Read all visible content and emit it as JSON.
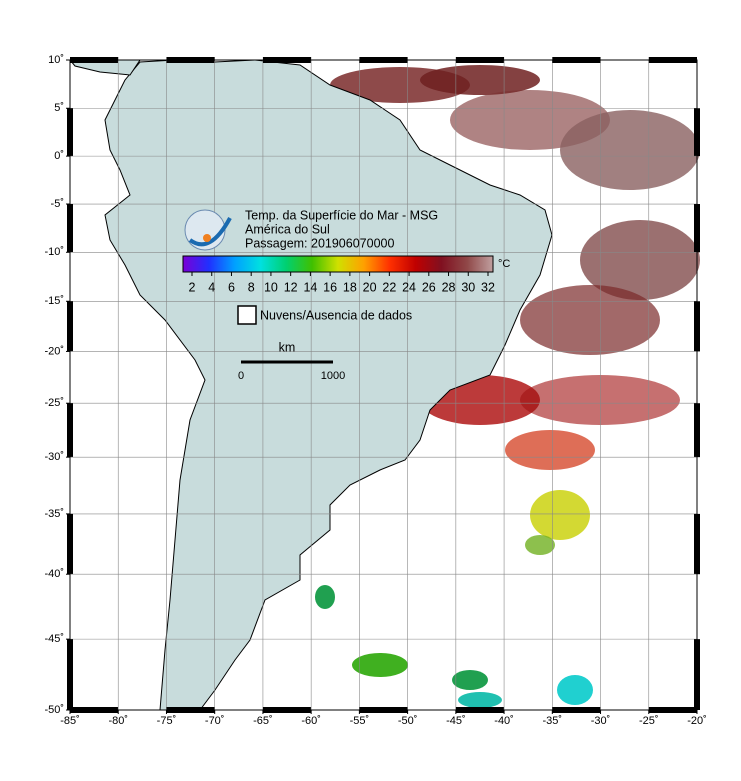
{
  "map": {
    "title_lines": [
      "Temp. da Superfície do Mar - MSG",
      "América do Sul",
      "Passagem: 201906070000"
    ],
    "colorbar": {
      "unit": "°C",
      "ticks": [
        2,
        4,
        6,
        8,
        10,
        12,
        14,
        16,
        18,
        20,
        22,
        24,
        26,
        28,
        30,
        32
      ],
      "colors": [
        "#7a00d6",
        "#2030ff",
        "#00a0ff",
        "#00e0e0",
        "#00d070",
        "#40c000",
        "#d0e000",
        "#ffa000",
        "#ff3000",
        "#c00000",
        "#801020",
        "#904848",
        "#c0a0a0"
      ]
    },
    "no_data_label": "Nuvens/Ausencia de dados",
    "scale": {
      "unit": "km",
      "start": 0,
      "end": 1000
    },
    "lon_ticks": [
      {
        "value": -85,
        "label": "-85˚"
      },
      {
        "value": -80,
        "label": "-80˚"
      },
      {
        "value": -75,
        "label": "-75˚"
      },
      {
        "value": -70,
        "label": "-70˚"
      },
      {
        "value": -65,
        "label": "-65˚"
      },
      {
        "value": -60,
        "label": "-60˚"
      },
      {
        "value": -55,
        "label": "-55˚"
      },
      {
        "value": -50,
        "label": "-50˚"
      },
      {
        "value": -45,
        "label": "-45˚"
      },
      {
        "value": -40,
        "label": "-40˚"
      },
      {
        "value": -35,
        "label": "-35˚"
      },
      {
        "value": -30,
        "label": "-30˚"
      },
      {
        "value": -25,
        "label": "-25˚"
      },
      {
        "value": -20,
        "label": "-20˚"
      }
    ],
    "lat_ticks": [
      {
        "value": 10,
        "label": "10˚"
      },
      {
        "value": 5,
        "label": "5˚"
      },
      {
        "value": 0,
        "label": "0˚"
      },
      {
        "value": -5,
        "label": "-5˚"
      },
      {
        "value": -10,
        "label": "-10˚"
      },
      {
        "value": -15,
        "label": "-15˚"
      },
      {
        "value": -20,
        "label": "-20˚"
      },
      {
        "value": -25,
        "label": "-25˚"
      },
      {
        "value": -30,
        "label": "-30˚"
      },
      {
        "value": -35,
        "label": "-35˚"
      },
      {
        "value": -40,
        "label": "-40˚"
      },
      {
        "value": -45,
        "label": "-45˚"
      },
      {
        "value": -50,
        "label": "-50˚"
      }
    ]
  }
}
